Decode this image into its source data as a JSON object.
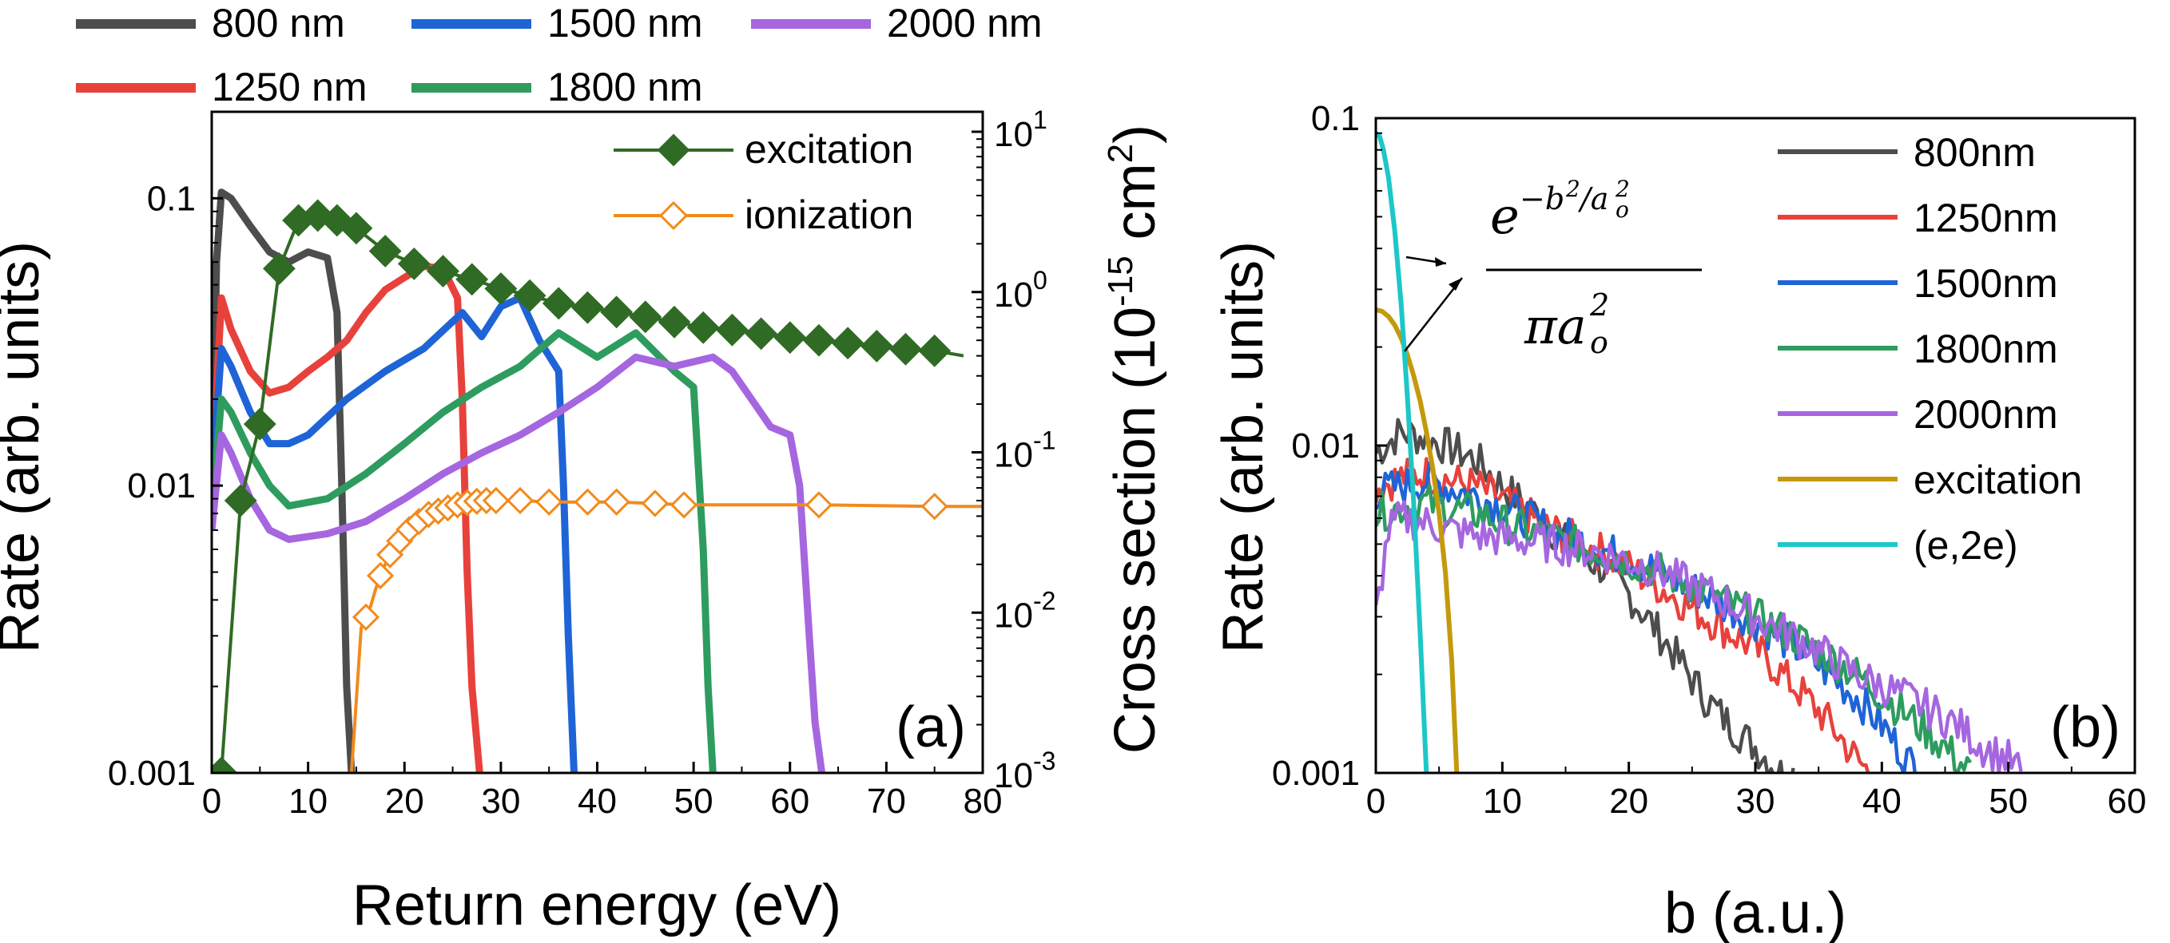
{
  "chart_data": [
    {
      "panel_label": "(a)",
      "type": "line",
      "xlabel": "Return energy (eV)",
      "ylabel": "Rate (arb. units)",
      "y2label": "Cross section (10-15 cm2)",
      "y2label_parts": [
        "Cross section (10",
        "-15",
        " cm",
        "2",
        ")"
      ],
      "xlim": [
        0,
        80
      ],
      "ylim": [
        0.001,
        0.2
      ],
      "y2lim": [
        0.001,
        10
      ],
      "yscale": "log",
      "y2scale": "log",
      "x_ticks": [
        "0",
        "10",
        "20",
        "30",
        "40",
        "50",
        "60",
        "70",
        "80"
      ],
      "y_ticks": [
        "0.001",
        "0.01",
        "0.1"
      ],
      "y2_ticks": [
        {
          "base": "10",
          "exp": "-3"
        },
        {
          "base": "10",
          "exp": "-2"
        },
        {
          "base": "10",
          "exp": "-1"
        },
        {
          "base": "10",
          "exp": "0"
        },
        {
          "base": "10",
          "exp": "1"
        }
      ],
      "legend_top": [
        "800 nm",
        "1500 nm",
        "2000 nm",
        "1250 nm",
        "1800 nm"
      ],
      "series": [
        {
          "name": "800 nm",
          "color": "#4d4d4d",
          "x": [
            0,
            0.5,
            1,
            2,
            4,
            6,
            8,
            10,
            12,
            13,
            13.5,
            14,
            14.5
          ],
          "y": [
            0.007,
            0.06,
            0.105,
            0.1,
            0.08,
            0.065,
            0.06,
            0.065,
            0.062,
            0.04,
            0.01,
            0.002,
            0.001
          ]
        },
        {
          "name": "1250 nm",
          "color": "#e8413c",
          "x": [
            0,
            1,
            2,
            4,
            6,
            8,
            10,
            12,
            14,
            16,
            18,
            20,
            22,
            24,
            25.5,
            26,
            26.5,
            27,
            27.8
          ],
          "y": [
            0.01,
            0.045,
            0.035,
            0.025,
            0.021,
            0.022,
            0.025,
            0.028,
            0.032,
            0.04,
            0.048,
            0.053,
            0.058,
            0.057,
            0.045,
            0.02,
            0.005,
            0.002,
            0.001
          ]
        },
        {
          "name": "1500 nm",
          "color": "#1f64d6",
          "x": [
            0,
            1,
            2,
            4,
            6,
            8,
            10,
            14,
            18,
            22,
            26,
            28,
            30,
            32,
            34,
            36,
            36.5,
            37,
            37.6
          ],
          "y": [
            0.01,
            0.03,
            0.026,
            0.018,
            0.014,
            0.014,
            0.015,
            0.02,
            0.025,
            0.03,
            0.04,
            0.033,
            0.042,
            0.045,
            0.032,
            0.025,
            0.01,
            0.003,
            0.001
          ]
        },
        {
          "name": "1800 nm",
          "color": "#2e9c5f",
          "x": [
            0,
            1,
            2,
            4,
            6,
            8,
            12,
            16,
            20,
            24,
            28,
            32,
            36,
            40,
            44,
            48,
            50,
            51,
            51.5,
            52
          ],
          "y": [
            0.008,
            0.02,
            0.018,
            0.013,
            0.01,
            0.0085,
            0.009,
            0.011,
            0.014,
            0.018,
            0.022,
            0.026,
            0.034,
            0.028,
            0.034,
            0.025,
            0.022,
            0.006,
            0.002,
            0.001
          ]
        },
        {
          "name": "2000 nm",
          "color": "#a566e0",
          "x": [
            0,
            1,
            2,
            4,
            6,
            8,
            12,
            16,
            20,
            24,
            28,
            32,
            36,
            40,
            44,
            48,
            52,
            54,
            56,
            58,
            60,
            61,
            62,
            62.6,
            63.3
          ],
          "y": [
            0.007,
            0.015,
            0.013,
            0.009,
            0.007,
            0.0065,
            0.0068,
            0.0075,
            0.009,
            0.011,
            0.013,
            0.015,
            0.018,
            0.022,
            0.028,
            0.026,
            0.028,
            0.025,
            0.02,
            0.016,
            0.015,
            0.01,
            0.003,
            0.0015,
            0.001
          ]
        }
      ],
      "cross_sections": [
        {
          "name": "excitation",
          "color": "#2f6b24",
          "marker": "diamond-filled",
          "x": [
            1,
            3,
            5,
            7,
            9,
            11,
            13,
            15,
            18,
            21,
            24,
            27,
            30,
            33,
            36,
            39,
            42,
            45,
            48,
            51,
            54,
            57,
            60,
            63,
            66,
            69,
            72,
            75,
            78
          ],
          "y": [
            0.001,
            0.05,
            0.15,
            1.4,
            2.8,
            3.0,
            2.8,
            2.5,
            1.8,
            1.5,
            1.35,
            1.2,
            1.05,
            0.95,
            0.85,
            0.8,
            0.75,
            0.7,
            0.65,
            0.6,
            0.58,
            0.55,
            0.52,
            0.5,
            0.48,
            0.46,
            0.44,
            0.43,
            0.4
          ],
          "marker_x": [
            1,
            3,
            5,
            7,
            9,
            11,
            13,
            15,
            18,
            21,
            24,
            27,
            30,
            33,
            36,
            39,
            42,
            45,
            48,
            51,
            54,
            57,
            60,
            63,
            66,
            69,
            72,
            75
          ]
        },
        {
          "name": "ionization",
          "color": "#f28a1c",
          "marker": "diamond-open",
          "x": [
            14.5,
            15.5,
            16.5,
            17,
            17.5,
            18,
            18.5,
            19,
            19.5,
            20,
            20.5,
            21,
            21.5,
            22,
            22.5,
            23,
            23.5,
            24,
            24.5,
            25,
            25.5,
            26,
            27,
            28,
            29,
            32,
            35,
            39,
            42,
            46,
            49,
            63,
            75,
            80
          ],
          "y": [
            0.001,
            0.008,
            0.011,
            0.014,
            0.017,
            0.02,
            0.023,
            0.026,
            0.028,
            0.031,
            0.033,
            0.035,
            0.037,
            0.039,
            0.041,
            0.042,
            0.043,
            0.044,
            0.045,
            0.046,
            0.047,
            0.048,
            0.049,
            0.05,
            0.05,
            0.05,
            0.049,
            0.049,
            0.049,
            0.048,
            0.047,
            0.047,
            0.046,
            0.046
          ],
          "marker_x": [
            16,
            17.5,
            18.5,
            19.5,
            20.5,
            21.5,
            22.5,
            23.5,
            24.5,
            25.5,
            26.5,
            27.5,
            28.5,
            29.5,
            32,
            35,
            39,
            42,
            46,
            49,
            63,
            75
          ]
        }
      ],
      "legend_inset": [
        "excitation",
        "ionization"
      ]
    },
    {
      "panel_label": "(b)",
      "type": "line",
      "xlabel": "b (a.u.)",
      "ylabel": "Rate (arb. units)",
      "xlim": [
        0,
        60
      ],
      "ylim": [
        0.001,
        0.1
      ],
      "yscale": "log",
      "x_ticks": [
        "0",
        "10",
        "20",
        "30",
        "40",
        "50",
        "60"
      ],
      "y_ticks": [
        "0.001",
        "0.01",
        "0.1"
      ],
      "annotation": "e^(-b^2/a_o^2) / (π a_o^2)",
      "series": [
        {
          "name": "800nm",
          "color": "#4d4d4d",
          "x": [
            0,
            2,
            4,
            6,
            8,
            10,
            12,
            14,
            16,
            18,
            20,
            22,
            24,
            26,
            28,
            30,
            32,
            33
          ],
          "y": [
            0.0095,
            0.011,
            0.0105,
            0.0098,
            0.009,
            0.0075,
            0.0065,
            0.0055,
            0.0047,
            0.0042,
            0.0035,
            0.0028,
            0.0022,
            0.0017,
            0.0014,
            0.0012,
            0.001,
            0.001
          ]
        },
        {
          "name": "1250nm",
          "color": "#e8413c",
          "x": [
            0,
            2,
            4,
            6,
            8,
            10,
            14,
            18,
            22,
            26,
            30,
            34,
            36,
            38,
            39
          ],
          "y": [
            0.0075,
            0.008,
            0.0082,
            0.0078,
            0.0075,
            0.0068,
            0.0055,
            0.0047,
            0.0038,
            0.003,
            0.0024,
            0.0017,
            0.0014,
            0.0011,
            0.001
          ]
        },
        {
          "name": "1500nm",
          "color": "#1f64d6",
          "x": [
            0,
            2,
            4,
            6,
            8,
            10,
            14,
            18,
            22,
            26,
            30,
            34,
            38,
            40,
            42,
            43
          ],
          "y": [
            0.0072,
            0.0075,
            0.0078,
            0.0074,
            0.007,
            0.0065,
            0.0055,
            0.0048,
            0.0042,
            0.0035,
            0.0029,
            0.0023,
            0.0017,
            0.0014,
            0.0011,
            0.001
          ]
        },
        {
          "name": "1800nm",
          "color": "#2e9c5f",
          "x": [
            0,
            2,
            4,
            6,
            8,
            10,
            14,
            18,
            22,
            26,
            30,
            34,
            38,
            42,
            45,
            47
          ],
          "y": [
            0.0062,
            0.0065,
            0.0067,
            0.0064,
            0.0062,
            0.0058,
            0.0052,
            0.0047,
            0.0042,
            0.0036,
            0.003,
            0.0025,
            0.002,
            0.0015,
            0.0012,
            0.001
          ]
        },
        {
          "name": "2000nm",
          "color": "#a566e0",
          "x": [
            0,
            1,
            2,
            4,
            6,
            8,
            10,
            14,
            18,
            22,
            26,
            30,
            34,
            38,
            42,
            46,
            48,
            50,
            51
          ],
          "y": [
            0.003,
            0.0055,
            0.006,
            0.0058,
            0.0055,
            0.0053,
            0.0052,
            0.005,
            0.0047,
            0.0042,
            0.0036,
            0.003,
            0.0025,
            0.002,
            0.0017,
            0.0014,
            0.0012,
            0.0011,
            0.001
          ]
        },
        {
          "name": "excitation",
          "color": "#c49a0c",
          "x": [
            0,
            0.5,
            1,
            1.5,
            2,
            2.5,
            3,
            3.5,
            4,
            4.5,
            5,
            5.5,
            6,
            6.4
          ],
          "y": [
            0.026,
            0.0257,
            0.0248,
            0.0233,
            0.0213,
            0.0189,
            0.0163,
            0.0137,
            0.011,
            0.0085,
            0.0062,
            0.0041,
            0.0022,
            0.001
          ]
        },
        {
          "name": "(e,2e)",
          "color": "#1dc7c7",
          "x": [
            0,
            0.3,
            0.6,
            1,
            1.5,
            2,
            2.5,
            3,
            3.5,
            4
          ],
          "y": [
            0.09,
            0.088,
            0.08,
            0.066,
            0.045,
            0.027,
            0.014,
            0.0066,
            0.0027,
            0.001
          ]
        }
      ]
    }
  ]
}
